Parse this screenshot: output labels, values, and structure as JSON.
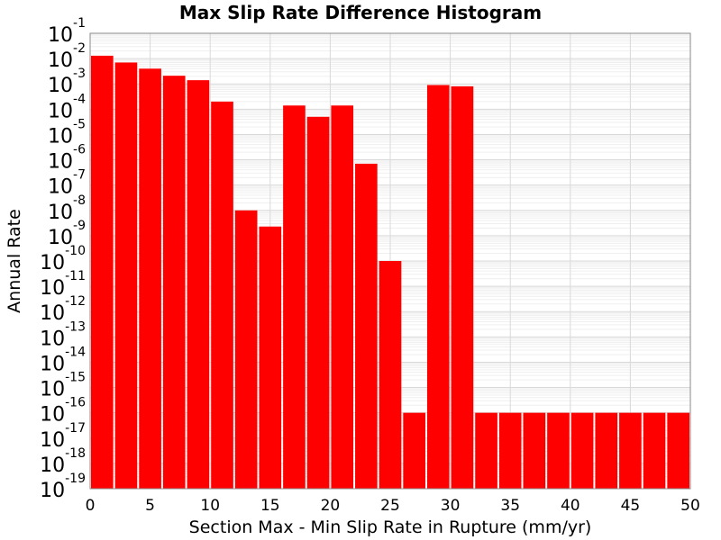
{
  "chart_data": {
    "type": "bar",
    "title": "Max Slip Rate Difference Histogram",
    "xlabel": "Section Max - Min Slip Rate in Rupture (mm/yr)",
    "ylabel": "Annual Rate",
    "yscale": "log",
    "xlim": [
      0,
      50
    ],
    "ylim": [
      1e-19,
      0.1
    ],
    "bin_width": 2,
    "x": [
      1,
      3,
      5,
      7,
      9,
      11,
      13,
      15,
      17,
      19,
      21,
      23,
      25,
      27,
      29,
      31,
      33,
      35,
      37,
      39,
      41,
      43,
      45,
      47,
      49
    ],
    "values": [
      0.013,
      0.007,
      0.004,
      0.0021,
      0.0014,
      0.0002,
      1e-08,
      2.3e-09,
      0.00014,
      5e-05,
      0.00014,
      7e-07,
      1e-10,
      1e-16,
      0.0009,
      0.0008,
      1e-16,
      1e-16,
      1e-16,
      1e-16,
      1e-16,
      1e-16,
      1e-16,
      1e-16,
      1e-16
    ],
    "bar_color": "#ff0000",
    "xticks": [
      "0",
      "5",
      "10",
      "15",
      "20",
      "25",
      "30",
      "35",
      "40",
      "45",
      "50"
    ],
    "yticks_exponents": [
      "-1",
      "-2",
      "-3",
      "-4",
      "-5",
      "-6",
      "-7",
      "-8",
      "-9",
      "-10",
      "-11",
      "-12",
      "-13",
      "-14",
      "-15",
      "-16",
      "-17",
      "-18",
      "-19"
    ],
    "ytick_base": "10",
    "grid": true,
    "legend": "none"
  }
}
